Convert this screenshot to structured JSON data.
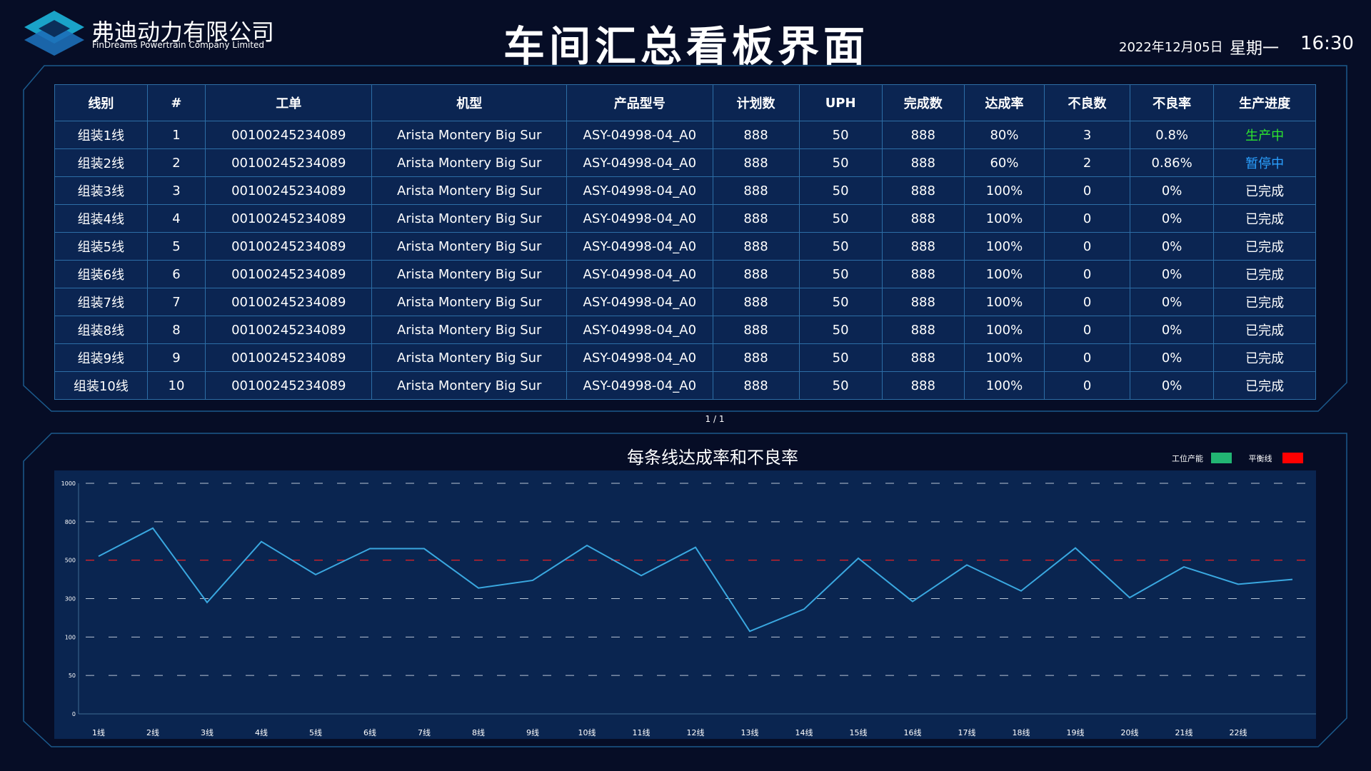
{
  "header": {
    "company": "弗迪动力有限公司",
    "company_en": "FinDreams Powertrain Company Limited",
    "title": "车间汇总看板界面",
    "date": "2022年12月05日",
    "weekday": "星期一",
    "time": "16:30"
  },
  "table": {
    "headers": [
      "线别",
      "#",
      "工单",
      "机型",
      "产品型号",
      "计划数",
      "UPH",
      "完成数",
      "达成率",
      "不良数",
      "不良率",
      "生产进度"
    ],
    "rows": [
      [
        "组装1线",
        "1",
        "00100245234089",
        "Arista Montery Big Sur",
        "ASY-04998-04_A0",
        "888",
        "50",
        "888",
        "80%",
        "3",
        "0.8%",
        "生产中"
      ],
      [
        "组装2线",
        "2",
        "00100245234089",
        "Arista Montery Big Sur",
        "ASY-04998-04_A0",
        "888",
        "50",
        "888",
        "60%",
        "2",
        "0.86%",
        "暂停中"
      ],
      [
        "组装3线",
        "3",
        "00100245234089",
        "Arista Montery Big Sur",
        "ASY-04998-04_A0",
        "888",
        "50",
        "888",
        "100%",
        "0",
        "0%",
        "已完成"
      ],
      [
        "组装4线",
        "4",
        "00100245234089",
        "Arista Montery Big Sur",
        "ASY-04998-04_A0",
        "888",
        "50",
        "888",
        "100%",
        "0",
        "0%",
        "已完成"
      ],
      [
        "组装5线",
        "5",
        "00100245234089",
        "Arista Montery Big Sur",
        "ASY-04998-04_A0",
        "888",
        "50",
        "888",
        "100%",
        "0",
        "0%",
        "已完成"
      ],
      [
        "组装6线",
        "6",
        "00100245234089",
        "Arista Montery Big Sur",
        "ASY-04998-04_A0",
        "888",
        "50",
        "888",
        "100%",
        "0",
        "0%",
        "已完成"
      ],
      [
        "组装7线",
        "7",
        "00100245234089",
        "Arista Montery Big Sur",
        "ASY-04998-04_A0",
        "888",
        "50",
        "888",
        "100%",
        "0",
        "0%",
        "已完成"
      ],
      [
        "组装8线",
        "8",
        "00100245234089",
        "Arista Montery Big Sur",
        "ASY-04998-04_A0",
        "888",
        "50",
        "888",
        "100%",
        "0",
        "0%",
        "已完成"
      ],
      [
        "组装9线",
        "9",
        "00100245234089",
        "Arista Montery Big Sur",
        "ASY-04998-04_A0",
        "888",
        "50",
        "888",
        "100%",
        "0",
        "0%",
        "已完成"
      ],
      [
        "组装10线",
        "10",
        "00100245234089",
        "Arista Montery Big Sur",
        "ASY-04998-04_A0",
        "888",
        "50",
        "888",
        "100%",
        "0",
        "0%",
        "已完成"
      ]
    ],
    "status_colors": {
      "生产中": "#2ee62e",
      "暂停中": "#2aa0ff",
      "已完成": "#ffffff"
    }
  },
  "pagination": "1 / 1",
  "chart_data": {
    "type": "line",
    "title": "每条线达成率和不良率",
    "categories": [
      "1线",
      "2线",
      "3线",
      "4线",
      "5线",
      "6线",
      "7线",
      "8线",
      "9线",
      "10线",
      "11线",
      "12线",
      "13线",
      "14线",
      "15线",
      "16线",
      "17线",
      "18线",
      "19线",
      "20线",
      "21线",
      "22线",
      null
    ],
    "series": [
      {
        "name": "工位产能",
        "color": "#22b573",
        "line_color": "#3aa8e0",
        "values": [
          530,
          750,
          280,
          645,
          425,
          590,
          590,
          355,
          395,
          615,
          420,
          600,
          130,
          245,
          515,
          285,
          475,
          340,
          595,
          305,
          465,
          375,
          400
        ]
      },
      {
        "name": "平衡线",
        "color": "#ff0000",
        "value": 500
      }
    ],
    "ylim": [
      0,
      1000
    ],
    "yticks": [
      0,
      50,
      100,
      300,
      500,
      800,
      1000
    ],
    "grid": true
  }
}
